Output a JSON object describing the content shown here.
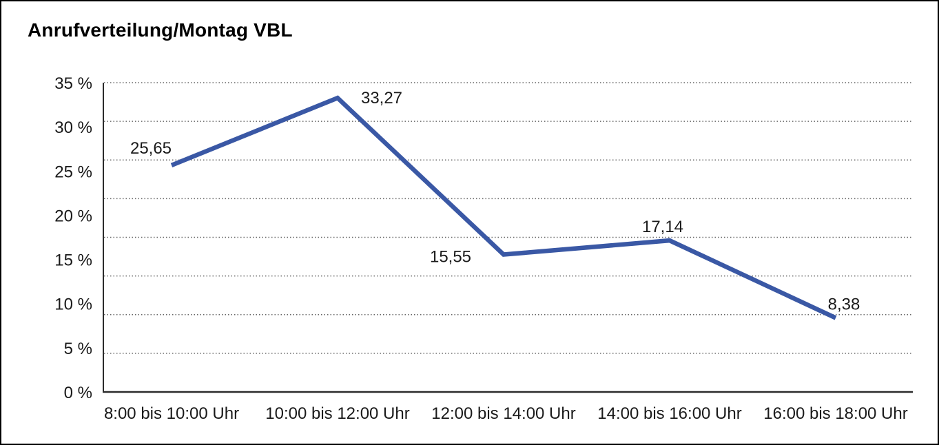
{
  "window": {
    "background_color": "#ffffff",
    "border_color": "#000000"
  },
  "chart_data": {
    "type": "line",
    "title": "Anrufverteilung/Montag VBL",
    "categories": [
      "8:00 bis 10:00 Uhr",
      "10:00 bis 12:00 Uhr",
      "12:00 bis 14:00 Uhr",
      "14:00 bis 16:00 Uhr",
      "16:00 bis 18:00 Uhr"
    ],
    "values": [
      25.65,
      33.27,
      15.55,
      17.14,
      8.38
    ],
    "value_labels": [
      "25,65",
      "33,27",
      "15,55",
      "17,14",
      "8,38"
    ],
    "value_label_placements": [
      "above-left",
      "right",
      "left",
      "above",
      "above-right"
    ],
    "xlabel": "",
    "ylabel": "",
    "ylim": [
      0,
      35
    ],
    "y_tick_values": [
      35,
      30,
      25,
      20,
      15,
      10,
      5,
      0
    ],
    "y_tick_labels": [
      "35 %",
      "30 %",
      "25 %",
      "20 %",
      "15 %",
      "10 %",
      "5 %",
      "0 %"
    ],
    "grid": "horizontal-dotted",
    "grid_intervals": 8,
    "legend": "none",
    "line_color": "#3a58a5",
    "grid_color": "#666666",
    "axis_color": "#2b2b2b",
    "text_color": "#1a1a1a"
  }
}
